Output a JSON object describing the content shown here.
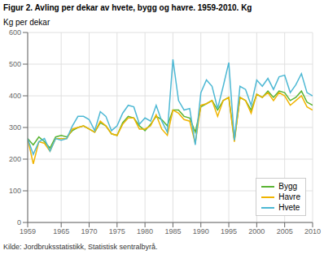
{
  "chart_data": {
    "type": "line",
    "title": "Figur 2. Avling per dekar av hvete, bygg og havre. 1959-2010. Kg",
    "ylabel": "Kg per dekar",
    "source": "Kilde: Jordbruksstatistikk, Statistisk sentralbyrå.",
    "x": [
      1959,
      1960,
      1961,
      1962,
      1963,
      1964,
      1965,
      1966,
      1967,
      1968,
      1969,
      1970,
      1971,
      1972,
      1973,
      1974,
      1975,
      1976,
      1977,
      1978,
      1979,
      1980,
      1981,
      1982,
      1983,
      1984,
      1985,
      1986,
      1987,
      1988,
      1989,
      1990,
      1991,
      1992,
      1993,
      1994,
      1995,
      1996,
      1997,
      1998,
      1999,
      2000,
      2001,
      2002,
      2003,
      2004,
      2005,
      2006,
      2007,
      2008,
      2009,
      2010
    ],
    "xlim": [
      1959,
      2010
    ],
    "xticks": [
      1959,
      1965,
      1970,
      1975,
      1980,
      1985,
      1990,
      1995,
      2000,
      2005,
      2010
    ],
    "ylim": [
      0,
      600
    ],
    "yticks": [
      0,
      100,
      200,
      300,
      400,
      500,
      600
    ],
    "grid": true,
    "legend": "lower right",
    "series": [
      {
        "name": "Bygg",
        "color": "#5ab432",
        "values": [
          265,
          245,
          270,
          255,
          235,
          270,
          275,
          270,
          290,
          300,
          305,
          295,
          285,
          315,
          305,
          280,
          275,
          315,
          335,
          330,
          305,
          290,
          310,
          335,
          325,
          305,
          355,
          355,
          335,
          330,
          285,
          365,
          375,
          385,
          355,
          385,
          395,
          260,
          395,
          385,
          355,
          405,
          395,
          415,
          395,
          415,
          410,
          385,
          395,
          415,
          380,
          370
        ]
      },
      {
        "name": "Havre",
        "color": "#f0b400",
        "values": [
          265,
          185,
          255,
          250,
          225,
          265,
          265,
          265,
          295,
          300,
          305,
          295,
          285,
          320,
          305,
          280,
          275,
          310,
          330,
          330,
          295,
          295,
          305,
          340,
          295,
          275,
          355,
          345,
          325,
          320,
          250,
          370,
          375,
          385,
          335,
          385,
          395,
          255,
          395,
          385,
          345,
          405,
          395,
          410,
          385,
          410,
          400,
          370,
          385,
          400,
          365,
          355
        ]
      },
      {
        "name": "Hvete",
        "color": "#4db8d4",
        "values": [
          265,
          215,
          255,
          265,
          225,
          265,
          260,
          265,
          305,
          335,
          335,
          325,
          290,
          350,
          335,
          290,
          305,
          345,
          370,
          365,
          310,
          330,
          320,
          370,
          320,
          285,
          515,
          385,
          355,
          360,
          245,
          410,
          450,
          430,
          360,
          430,
          505,
          260,
          430,
          420,
          370,
          450,
          430,
          455,
          420,
          460,
          465,
          410,
          435,
          470,
          410,
          400
        ]
      }
    ]
  }
}
